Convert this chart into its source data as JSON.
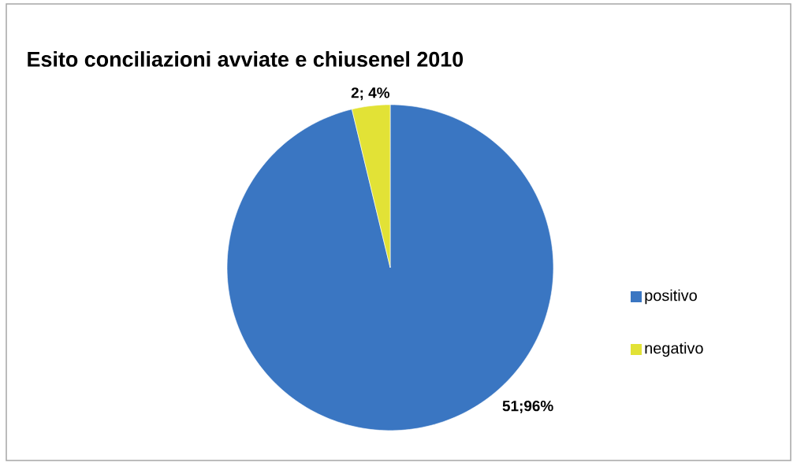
{
  "chart_data": {
    "type": "pie",
    "title": "Esito conciliazioni avviate e chiusenel 2010",
    "categories": [
      "positivo",
      "negativo"
    ],
    "values": [
      51,
      2
    ],
    "colors": [
      "#3a76c2",
      "#e2e236"
    ],
    "value_labels": [
      "51;96%",
      "2; 4%"
    ],
    "legend": "right"
  }
}
